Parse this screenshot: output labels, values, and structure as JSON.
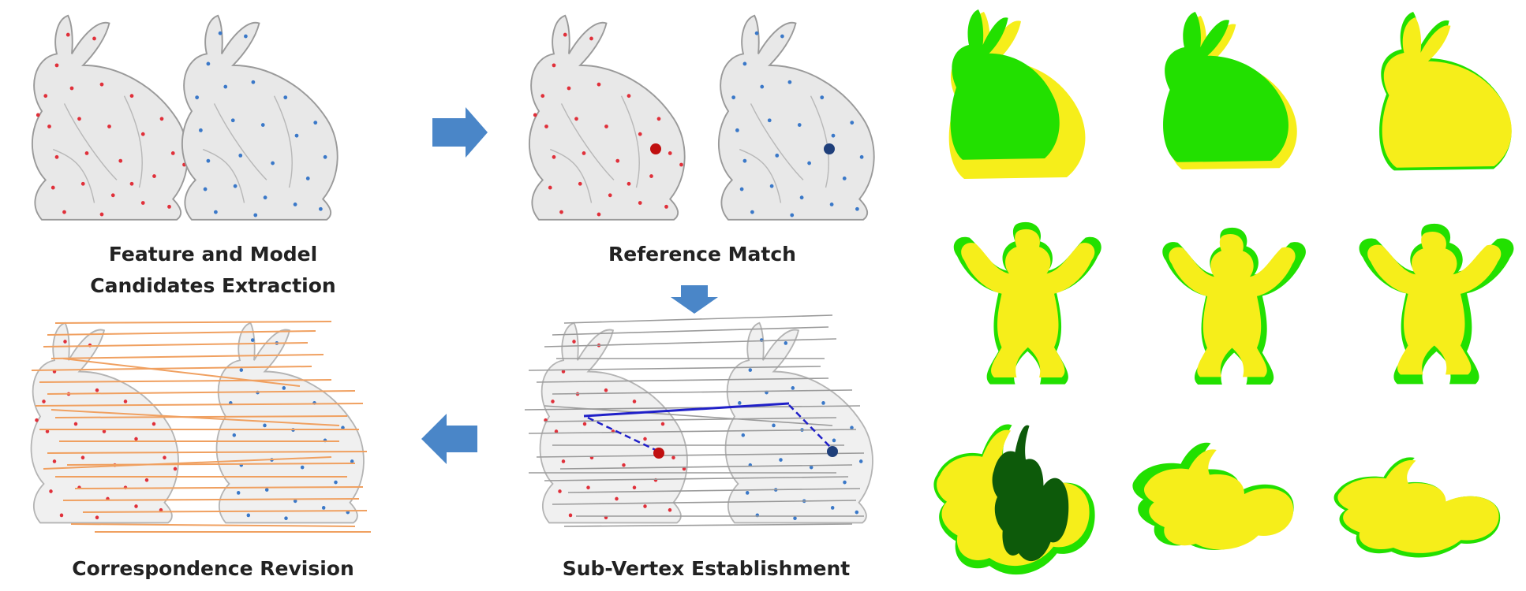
{
  "panels": {
    "feature_extraction": {
      "line1": "Feature and Model",
      "line2": "Candidates Extraction"
    },
    "reference_match": {
      "label": "Reference Match"
    },
    "sub_vertex": {
      "label": "Sub-Vertex Establishment"
    },
    "correspondence_revision": {
      "label": "Correspondence Revision"
    }
  },
  "colors": {
    "source_points": "#e0303a",
    "target_points": "#3a78c8",
    "arrow": "#4a86c8",
    "revised_lines": "#f0a060",
    "sub_vertex_lines": "#9a9a9a",
    "reference_line": "#2020c8",
    "result_green": "#22e000",
    "result_yellow": "#f6ee1a",
    "result_dark_green": "#0d5a0a"
  },
  "results_grid": {
    "rows": [
      "bunny",
      "armadillo",
      "dragon"
    ],
    "columns": 3
  }
}
